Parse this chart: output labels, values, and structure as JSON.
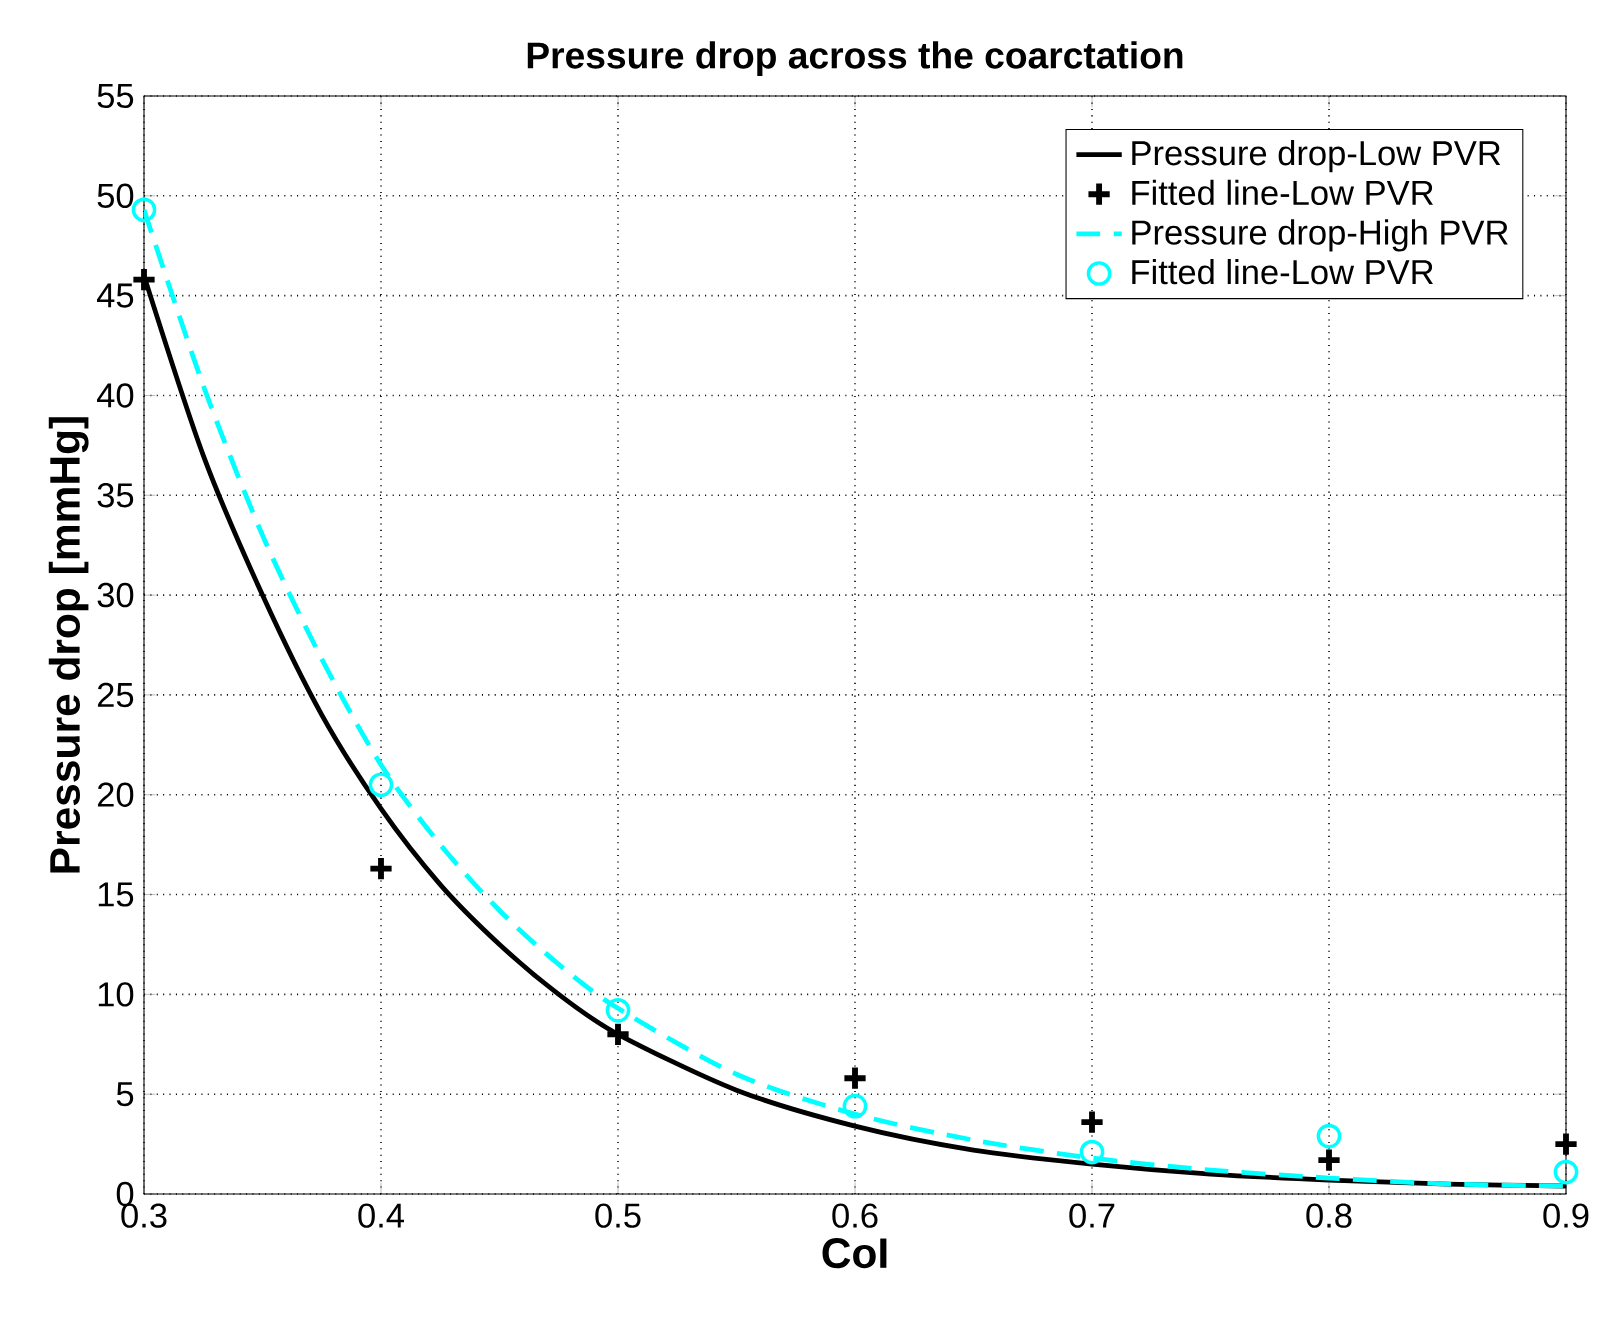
{
  "chart_data": {
    "type": "line",
    "title": "Pressure drop across the coarctation",
    "xlabel": "CoI",
    "ylabel": "Pressure drop [mmHg]",
    "xlim": [
      0.3,
      0.9
    ],
    "xticks": [
      0.3,
      0.4,
      0.5,
      0.6,
      0.7,
      0.8,
      0.9
    ],
    "ylim": [
      0,
      55
    ],
    "yticks": [
      0,
      5,
      10,
      15,
      20,
      25,
      30,
      35,
      40,
      45,
      50,
      55
    ],
    "grid": true,
    "legend": "top right",
    "series": [
      {
        "name": "Pressure drop-Low PVR",
        "color": "#000000",
        "line_style": "solid",
        "marker": "none",
        "x": [
          0.3,
          0.325,
          0.35,
          0.375,
          0.4,
          0.425,
          0.45,
          0.475,
          0.5,
          0.55,
          0.6,
          0.65,
          0.7,
          0.75,
          0.8,
          0.85,
          0.9
        ],
        "values": [
          46,
          37,
          30,
          24,
          19.3,
          15.5,
          12.5,
          10,
          8,
          5.2,
          3.4,
          2.2,
          1.5,
          1,
          0.7,
          0.5,
          0.4
        ]
      },
      {
        "name": "Fitted line-Low PVR",
        "type": "scatter",
        "color": "#000000",
        "marker": "cross",
        "x": [
          0.3,
          0.4,
          0.5,
          0.6,
          0.7,
          0.8,
          0.9
        ],
        "values": [
          45.8,
          16.3,
          8,
          5.8,
          3.6,
          1.7,
          2.5
        ]
      },
      {
        "name": "Pressure drop-High PVR",
        "color": "#00ffff",
        "line_style": "dashed",
        "marker": "none",
        "x": [
          0.3,
          0.325,
          0.35,
          0.375,
          0.4,
          0.425,
          0.45,
          0.475,
          0.5,
          0.55,
          0.6,
          0.65,
          0.7,
          0.75,
          0.8,
          0.85,
          0.9
        ],
        "values": [
          49.3,
          40.5,
          33,
          26.8,
          21.5,
          17.5,
          14.2,
          11.5,
          9.3,
          6,
          4,
          2.7,
          1.8,
          1.2,
          0.8,
          0.5,
          0.4
        ]
      },
      {
        "name": "Fitted line-Low PVR",
        "type": "scatter",
        "color": "#00ffff",
        "marker": "circle",
        "x": [
          0.3,
          0.4,
          0.5,
          0.6,
          0.7,
          0.8,
          0.9
        ],
        "values": [
          49.3,
          20.5,
          9.2,
          4.4,
          2.1,
          2.9,
          1.1
        ]
      }
    ]
  }
}
